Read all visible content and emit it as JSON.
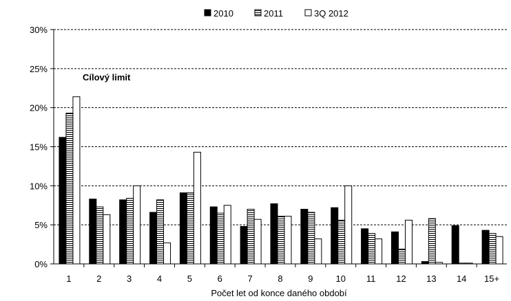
{
  "chart_data": {
    "type": "bar",
    "xlabel": "Počet let od konce daného období",
    "ylabel": "",
    "ylim": [
      0,
      30
    ],
    "yticks": [
      "0%",
      "5%",
      "10%",
      "15%",
      "20%",
      "25%",
      "30%"
    ],
    "grid": true,
    "legend_position": "top",
    "annotation": "Cílový limit",
    "categories": [
      "1",
      "2",
      "3",
      "4",
      "5",
      "6",
      "7",
      "8",
      "9",
      "10",
      "11",
      "12",
      "13",
      "14",
      "15+"
    ],
    "series": [
      {
        "name": "2010",
        "pattern": "solid",
        "color": "#000000",
        "values": [
          16.2,
          8.3,
          8.2,
          6.6,
          9.1,
          7.3,
          4.8,
          7.7,
          7.0,
          7.2,
          4.5,
          4.1,
          0.3,
          4.9,
          4.3
        ]
      },
      {
        "name": "2011",
        "pattern": "horizontal-stripes",
        "color": "#ffffff",
        "values": [
          19.3,
          7.3,
          8.4,
          8.2,
          9.1,
          6.5,
          7.0,
          6.1,
          6.6,
          5.6,
          3.9,
          1.9,
          5.8,
          0.1,
          3.9
        ]
      },
      {
        "name": "3Q 2012",
        "pattern": "empty",
        "color": "#ffffff",
        "values": [
          21.4,
          6.3,
          10.0,
          2.7,
          14.3,
          7.5,
          5.7,
          6.1,
          3.2,
          10.0,
          3.2,
          5.6,
          0.2,
          0.1,
          3.5
        ]
      }
    ]
  }
}
